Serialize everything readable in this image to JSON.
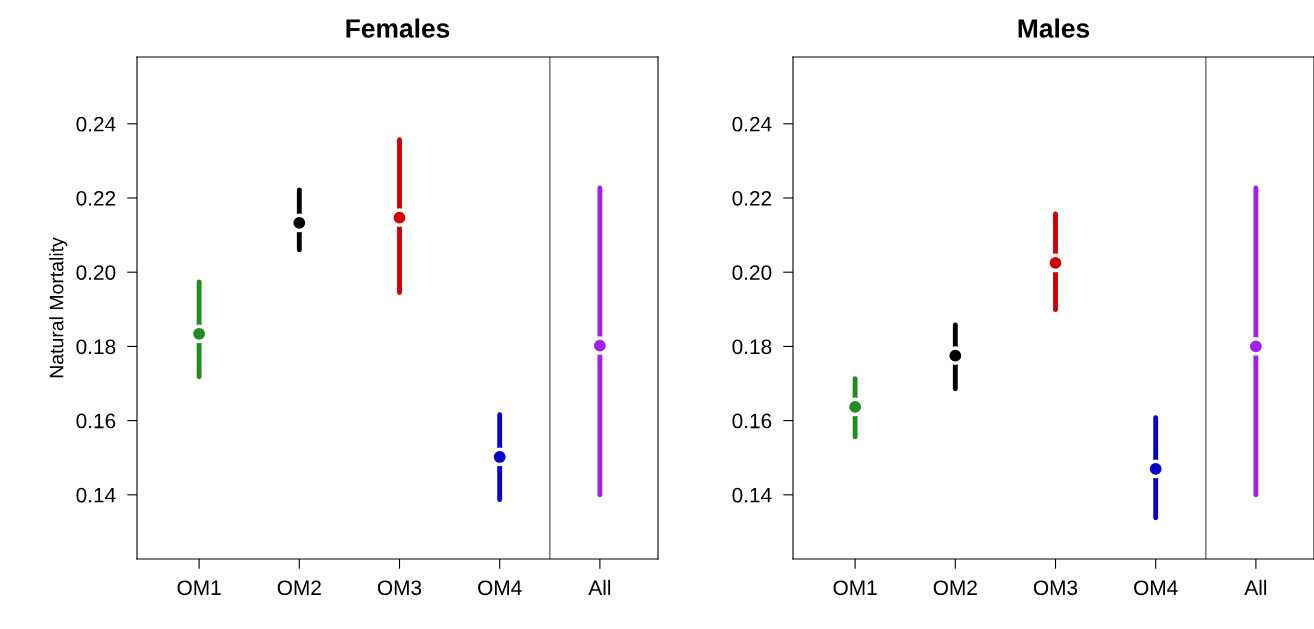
{
  "chart_data": [
    {
      "type": "scatter",
      "title": "Females",
      "ylabel": "Natural Mortality",
      "categories": [
        "OM1",
        "OM2",
        "OM3",
        "OM4",
        "All"
      ],
      "values": [
        0.1834,
        0.2133,
        0.2147,
        0.1502,
        0.1802
      ],
      "errors": [
        [
          0.1718,
          0.1974
        ],
        [
          0.206,
          0.2222
        ],
        [
          0.1945,
          0.2357
        ],
        [
          0.1387,
          0.1616
        ],
        [
          0.14,
          0.2227
        ]
      ],
      "colors": [
        "#228b22",
        "#000000",
        "#cc0000",
        "#0000cc",
        "#a020f0"
      ],
      "ylim": [
        0.1227,
        0.258
      ],
      "yticks": [
        0.14,
        0.16,
        0.18,
        {
          "value": 0.2,
          "label": "0.20"
        },
        0.22,
        0.24
      ],
      "marker": "circle"
    },
    {
      "type": "scatter",
      "title": "Males",
      "categories": [
        "OM1",
        "OM2",
        "OM3",
        "OM4",
        "All"
      ],
      "values": [
        0.1637,
        0.1775,
        0.2025,
        0.147,
        0.18
      ],
      "errors": [
        [
          0.1556,
          0.1713
        ],
        [
          0.1686,
          0.1858
        ],
        [
          0.1899,
          0.2157
        ],
        [
          0.1338,
          0.1608
        ],
        [
          0.14,
          0.2227
        ]
      ],
      "colors": [
        "#228b22",
        "#000000",
        "#cc0000",
        "#0000cc",
        "#a020f0"
      ],
      "ylim": [
        0.1227,
        0.258
      ],
      "yticks": [
        0.14,
        0.16,
        0.18,
        {
          "value": 0.2,
          "label": "0.20"
        },
        0.22,
        0.24
      ],
      "marker": "circle"
    }
  ]
}
